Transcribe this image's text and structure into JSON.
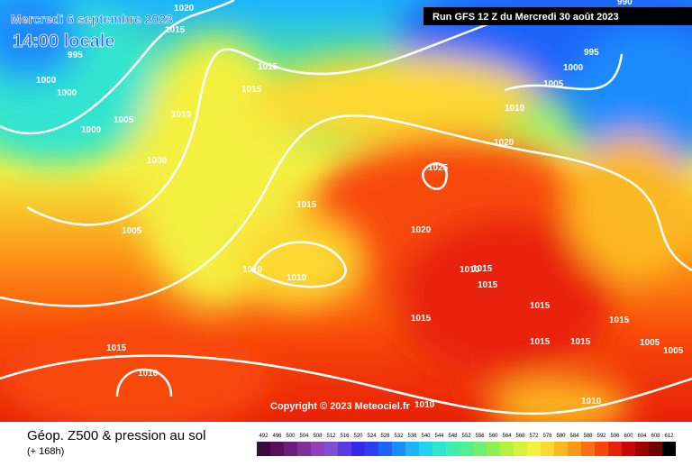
{
  "header": {
    "date": "Mercredi 6 septembre 2023",
    "time": "14:00 locale",
    "run": "Run GFS 12 Z du Mercredi 30 août 2023"
  },
  "copyright": "Copyright © 2023 Meteociel.fr",
  "legend": {
    "title": "Géop. Z500 & pression au sol",
    "subtitle": "(+ 168h)",
    "scale": [
      {
        "label": 492,
        "color": "#3a0a3e"
      },
      {
        "label": 496,
        "color": "#5a0f5e"
      },
      {
        "label": 500,
        "color": "#6e1a7e"
      },
      {
        "label": 504,
        "color": "#80309a"
      },
      {
        "label": 508,
        "color": "#9040b8"
      },
      {
        "label": 512,
        "color": "#7c50d0"
      },
      {
        "label": 516,
        "color": "#5a3ce0"
      },
      {
        "label": 520,
        "color": "#3a28e8"
      },
      {
        "label": 524,
        "color": "#2a40f0"
      },
      {
        "label": 528,
        "color": "#1e64f8"
      },
      {
        "label": 532,
        "color": "#1a8cfc"
      },
      {
        "label": 536,
        "color": "#1eb4fc"
      },
      {
        "label": 540,
        "color": "#20d4f0"
      },
      {
        "label": 544,
        "color": "#30e4d0"
      },
      {
        "label": 548,
        "color": "#40ecb0"
      },
      {
        "label": 552,
        "color": "#50f090"
      },
      {
        "label": 556,
        "color": "#70f070"
      },
      {
        "label": 560,
        "color": "#90f050"
      },
      {
        "label": 564,
        "color": "#b4f040"
      },
      {
        "label": 568,
        "color": "#d8f040"
      },
      {
        "label": 572,
        "color": "#f4f040"
      },
      {
        "label": 576,
        "color": "#fcd830"
      },
      {
        "label": 580,
        "color": "#fcb820"
      },
      {
        "label": 584,
        "color": "#fc9818"
      },
      {
        "label": 588,
        "color": "#fc7010"
      },
      {
        "label": 592,
        "color": "#f84808"
      },
      {
        "label": 596,
        "color": "#e82008"
      },
      {
        "label": 600,
        "color": "#c80808"
      },
      {
        "label": 604,
        "color": "#a00000"
      },
      {
        "label": 608,
        "color": "#700000"
      },
      {
        "label": 612,
        "color": "#000000"
      }
    ]
  },
  "isobars": [
    "1020",
    "1015",
    "995",
    "1000",
    "1000",
    "1015",
    "1015",
    "1010",
    "1005",
    "1000",
    "1000",
    "1025",
    "1015",
    "1005",
    "1020",
    "1010",
    "1010",
    "1010",
    "1015",
    "1015",
    "1015",
    "1015",
    "1015",
    "1015",
    "1015",
    "1005",
    "1005",
    "1015",
    "1010",
    "1010",
    "1010",
    "1010",
    "1020",
    "1005",
    "1000",
    "995",
    "990"
  ]
}
